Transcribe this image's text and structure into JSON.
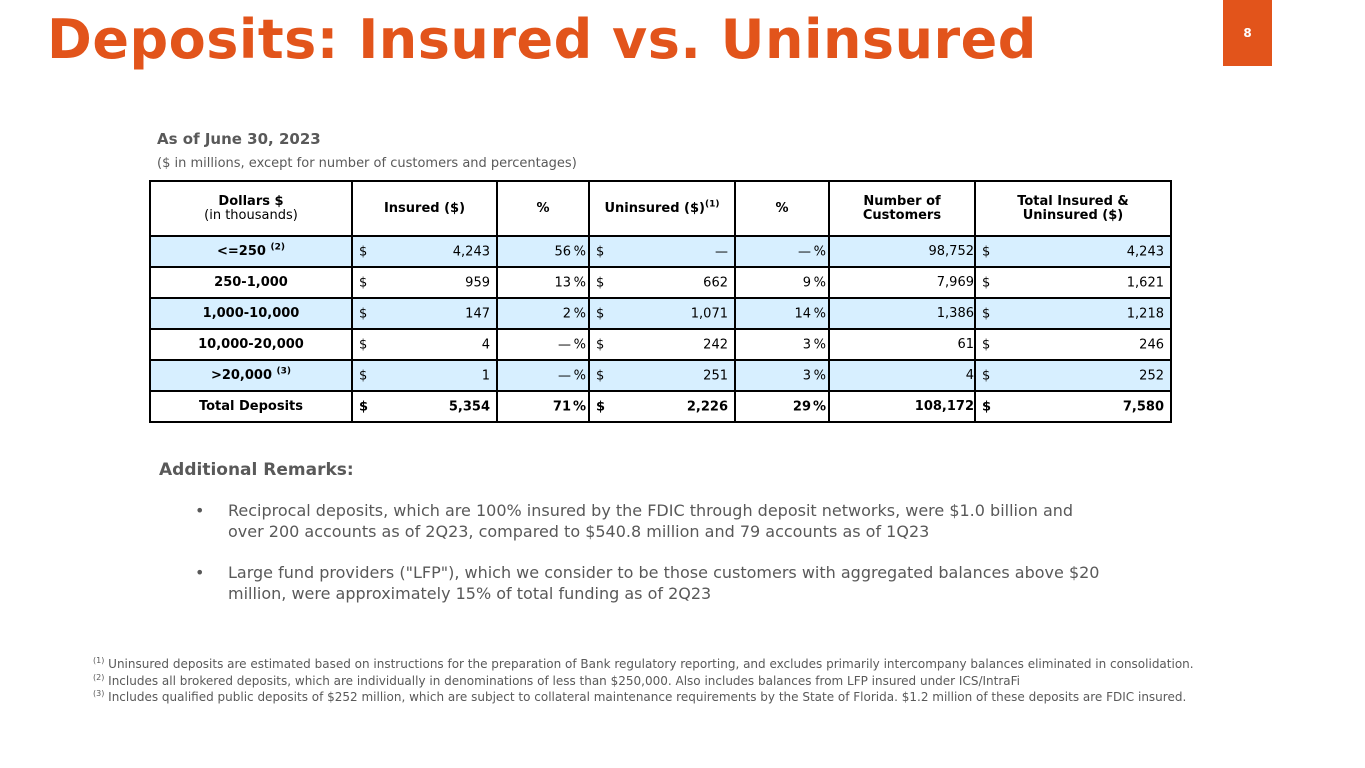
{
  "header": {
    "title": "Deposits: Insured vs. Uninsured",
    "page_number": "8"
  },
  "table_info": {
    "as_of": "As of June 30, 2023",
    "units_note": "($ in millions, except for number of customers and percentages)"
  },
  "table": {
    "columns": {
      "dollars": "Dollars $",
      "dollars_sub": "(in thousands)",
      "insured": "Insured ($)",
      "pct": "%",
      "uninsured": "Uninsured  ($)",
      "uninsured_sup": "(1)",
      "pct2": "%",
      "customers_1": "Number  of",
      "customers_2": "Customers",
      "total_1": "Total Insured &",
      "total_2": "Uninsured ($)"
    },
    "currency": "$",
    "pct_sign": "%",
    "rows": [
      {
        "label": "<=250",
        "sup": "(2)",
        "insured": "4,243",
        "insured_pct": "56",
        "uninsured": "—",
        "uninsured_pct": "—",
        "customers": "98,752",
        "total": "4,243"
      },
      {
        "label": "250-1,000",
        "sup": "",
        "insured": "959",
        "insured_pct": "13",
        "uninsured": "662",
        "uninsured_pct": "9",
        "customers": "7,969",
        "total": "1,621"
      },
      {
        "label": "1,000-10,000",
        "sup": "",
        "insured": "147",
        "insured_pct": "2",
        "uninsured": "1,071",
        "uninsured_pct": "14",
        "customers": "1,386",
        "total": "1,218"
      },
      {
        "label": "10,000-20,000",
        "sup": "",
        "insured": "4",
        "insured_pct": "—",
        "uninsured": "242",
        "uninsured_pct": "3",
        "customers": "61",
        "total": "246"
      },
      {
        "label": ">20,000",
        "sup": "(3)",
        "insured": "1",
        "insured_pct": "—",
        "uninsured": "251",
        "uninsured_pct": "3",
        "customers": "4",
        "total": "252"
      },
      {
        "label": "Total Deposits",
        "sup": "",
        "insured": "5,354",
        "insured_pct": "71",
        "uninsured": "2,226",
        "uninsured_pct": "29",
        "customers": "108,172",
        "total": "7,580"
      }
    ]
  },
  "remarks": {
    "heading": "Additional Remarks:",
    "bullet_char": "•",
    "items": [
      {
        "line1": "Reciprocal deposits, which are 100% insured by the FDIC through deposit networks, were $1.0 billion and",
        "line2": "over 200 accounts as of 2Q23, compared to $540.8 million and 79 accounts as of 1Q23"
      },
      {
        "line1": "Large fund providers (\"LFP\"), which we consider to be those customers with aggregated balances above $20",
        "line2": "million, were approximately 15% of total funding as of 2Q23"
      }
    ]
  },
  "footnotes": [
    {
      "mark": "(1)",
      "text": " Uninsured deposits are estimated based on instructions for the preparation of Bank regulatory reporting, and excludes primarily intercompany balances eliminated in consolidation."
    },
    {
      "mark": "(2)",
      "text": " Includes all brokered deposits, which are individually in denominations of less than $250,000. Also includes balances from LFP insured under ICS/IntraFi"
    },
    {
      "mark": "(3)",
      "text": " Includes qualified public deposits of $252 million, which are subject to collateral maintenance requirements by the State of Florida. $1.2 million of these deposits are FDIC insured."
    }
  ],
  "colors": {
    "accent": "#e2541b",
    "row_shade": "#d7efff",
    "text": "#595959"
  }
}
